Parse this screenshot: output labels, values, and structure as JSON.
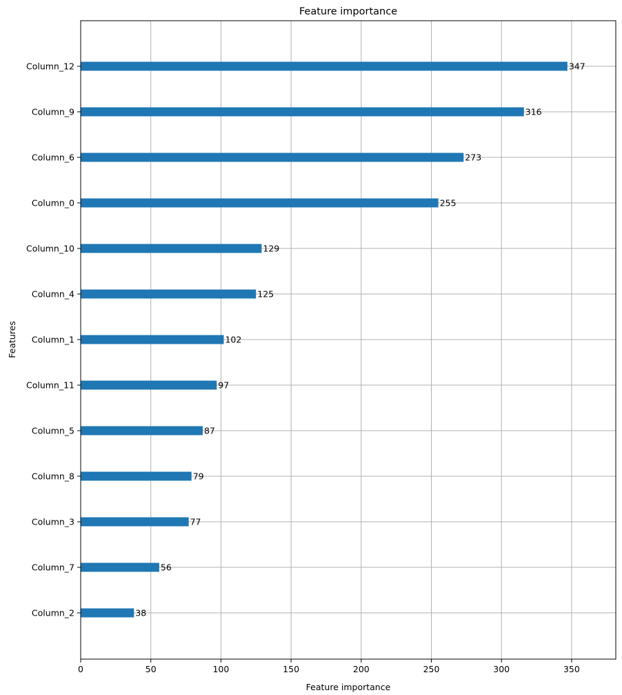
{
  "chart_data": {
    "type": "bar",
    "orientation": "horizontal",
    "title": "Feature importance",
    "xlabel": "Feature importance",
    "ylabel": "Features",
    "categories": [
      "Column_12",
      "Column_9",
      "Column_6",
      "Column_0",
      "Column_10",
      "Column_4",
      "Column_1",
      "Column_11",
      "Column_5",
      "Column_8",
      "Column_3",
      "Column_7",
      "Column_2"
    ],
    "values": [
      347,
      316,
      273,
      255,
      129,
      125,
      102,
      97,
      87,
      79,
      77,
      56,
      38
    ],
    "data_labels": [
      "347",
      "316",
      "273",
      "255",
      "129",
      "125",
      "102",
      "97",
      "87",
      "79",
      "77",
      "56",
      "38"
    ],
    "xlim": [
      0,
      381.5
    ],
    "xticks": [
      0,
      50,
      100,
      150,
      200,
      250,
      300,
      350
    ],
    "grid": true,
    "bar_color": "#1f77b4",
    "grid_color": "#b0b0b0"
  }
}
